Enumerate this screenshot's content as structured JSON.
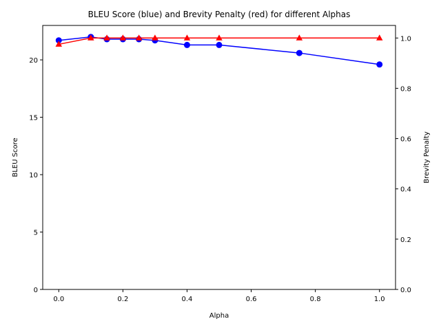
{
  "chart_data": {
    "type": "line",
    "title": "BLEU Score (blue) and Brevity Penalty (red) for different Alphas",
    "xlabel": "Alpha",
    "ylabel_left": "BLEU Score",
    "ylabel_right": "Brevity Penalty",
    "xlim": [
      -0.05,
      1.05
    ],
    "ylim_left": [
      0,
      23.0
    ],
    "ylim_right": [
      0,
      1.05
    ],
    "xticks": [
      0.0,
      0.2,
      0.4,
      0.6,
      0.8,
      1.0
    ],
    "xtick_labels": [
      "0.0",
      "0.2",
      "0.4",
      "0.6",
      "0.8",
      "1.0"
    ],
    "yticks_left": [
      0,
      5,
      10,
      15,
      20
    ],
    "ytick_labels_left": [
      "0",
      "5",
      "10",
      "15",
      "20"
    ],
    "yticks_right": [
      0.0,
      0.2,
      0.4,
      0.6,
      0.8,
      1.0
    ],
    "ytick_labels_right": [
      "0.0",
      "0.2",
      "0.4",
      "0.6",
      "0.8",
      "1.0"
    ],
    "x": [
      0.0,
      0.1,
      0.15,
      0.2,
      0.25,
      0.3,
      0.4,
      0.5,
      0.75,
      1.0
    ],
    "series": [
      {
        "axis": "left",
        "color": "#0000ff",
        "marker": "circle",
        "values": [
          21.7,
          22.0,
          21.8,
          21.8,
          21.8,
          21.7,
          21.3,
          21.3,
          20.6,
          19.6
        ]
      },
      {
        "axis": "right",
        "color": "#ff0000",
        "marker": "triangle",
        "values": [
          0.975,
          1.0,
          1.0,
          1.0,
          1.0,
          1.0,
          1.0,
          1.0,
          1.0,
          1.0
        ]
      }
    ],
    "grid": false
  }
}
